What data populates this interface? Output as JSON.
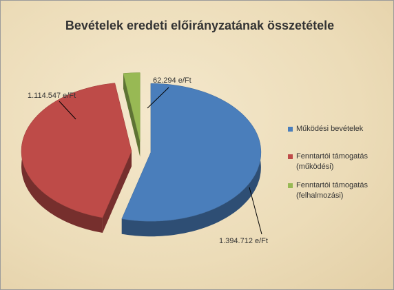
{
  "chart_data": {
    "type": "pie",
    "title": "Bevételek eredeti előirányzatának összetétele",
    "categories": [
      "Működési bevételek",
      "Fenntartói támogatás (működési)",
      "Fenntartói támogatás (felhalmozási)"
    ],
    "values": [
      1394712,
      1114547,
      62294
    ],
    "value_labels": [
      "1.394.712 e/Ft",
      "1.114.547 e/Ft",
      "62.294 e/Ft"
    ],
    "colors": [
      "#4a7ebb",
      "#be4b48",
      "#98b954"
    ]
  }
}
